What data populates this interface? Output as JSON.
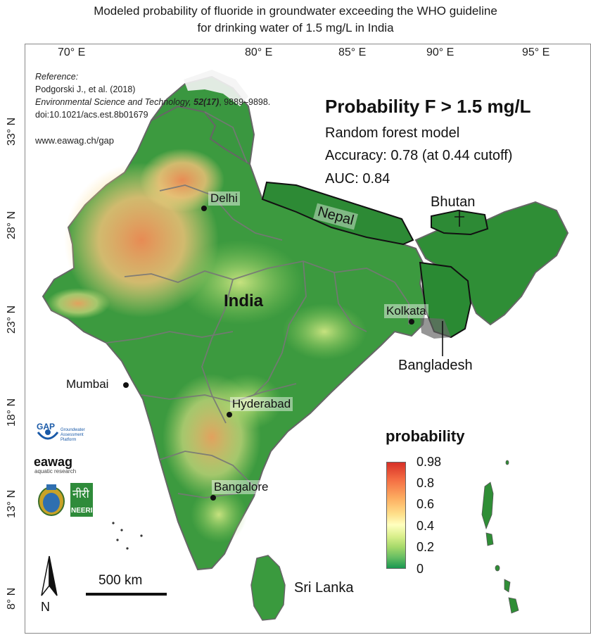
{
  "title": {
    "line1": "Modeled probability of fluoride in groundwater exceeding the WHO guideline",
    "line2": "for drinking water of 1.5 mg/L in India"
  },
  "longitude_labels": [
    "70° E",
    "80° E",
    "85° E",
    "90° E",
    "95° E"
  ],
  "latitude_labels": [
    "33° N",
    "28° N",
    "23° N",
    "18° N",
    "13° N",
    "8° N"
  ],
  "reference": {
    "heading": "Reference:",
    "authors": "Podgorski J., et al. (2018)",
    "journal": "Environmental Science and Technology, ",
    "volume": "52(17)",
    "pages": ", 9889–9898.",
    "doi": "doi:10.1021/acs.est.8b01679",
    "website": "www.eawag.ch/gap"
  },
  "panel": {
    "title": "Probability F > 1.5 mg/L",
    "model": "Random forest model",
    "accuracy": "Accuracy: 0.78 (at 0.44 cutoff)",
    "auc": "AUC: 0.84"
  },
  "places": {
    "delhi": "Delhi",
    "nepal": "Nepal",
    "bhutan": "Bhutan",
    "india": "India",
    "kolkata": "Kolkata",
    "bangladesh": "Bangladesh",
    "mumbai": "Mumbai",
    "hyderabad": "Hyderabad",
    "bangalore": "Bangalore",
    "sri_lanka": "Sri Lanka"
  },
  "legend": {
    "title": "probability",
    "ticks": [
      "0.98",
      "0.8",
      "0.6",
      "0.4",
      "0.2",
      "0"
    ],
    "colors": [
      "#d73027",
      "#fdae61",
      "#ffffbf",
      "#a6d96a",
      "#1a9850"
    ]
  },
  "scale_bar": "500 km",
  "north_arrow": "N",
  "logos": {
    "gap": "GAP",
    "gap_sub": "Groundwater Assessment Platform",
    "eawag": "eawag",
    "eawag_sub": "aquatic research",
    "neeri": "NEERI",
    "neeri_script": "नीरी"
  }
}
